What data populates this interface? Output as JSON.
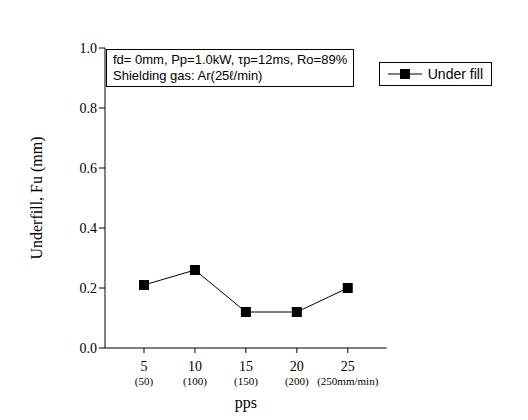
{
  "chart_data": {
    "type": "line",
    "annotation": [
      "fd= 0mm, Pp=1.0kW, τp=12ms, Ro=89%",
      "Shielding gas: Ar(25ℓ/min)"
    ],
    "x_label": "pps",
    "y_label": "Underfill, Fu (mm)",
    "categories": [
      "5\n(50)",
      "10\n(100)",
      "15\n(150)",
      "20\n(200)",
      "25\n(250mm/min)"
    ],
    "series": [
      {
        "name": "Under fill",
        "color": "#000000",
        "marker": "square",
        "values": [
          0.21,
          0.26,
          0.12,
          0.12,
          0.2
        ]
      }
    ],
    "ylim": [
      0,
      1
    ],
    "yticks": [
      {
        "value": 0,
        "label": "0.0"
      },
      0.2,
      0.4,
      0.6,
      0.8,
      {
        "value": 1,
        "label": "1.0"
      }
    ],
    "grid": false,
    "legend": "upper right"
  }
}
